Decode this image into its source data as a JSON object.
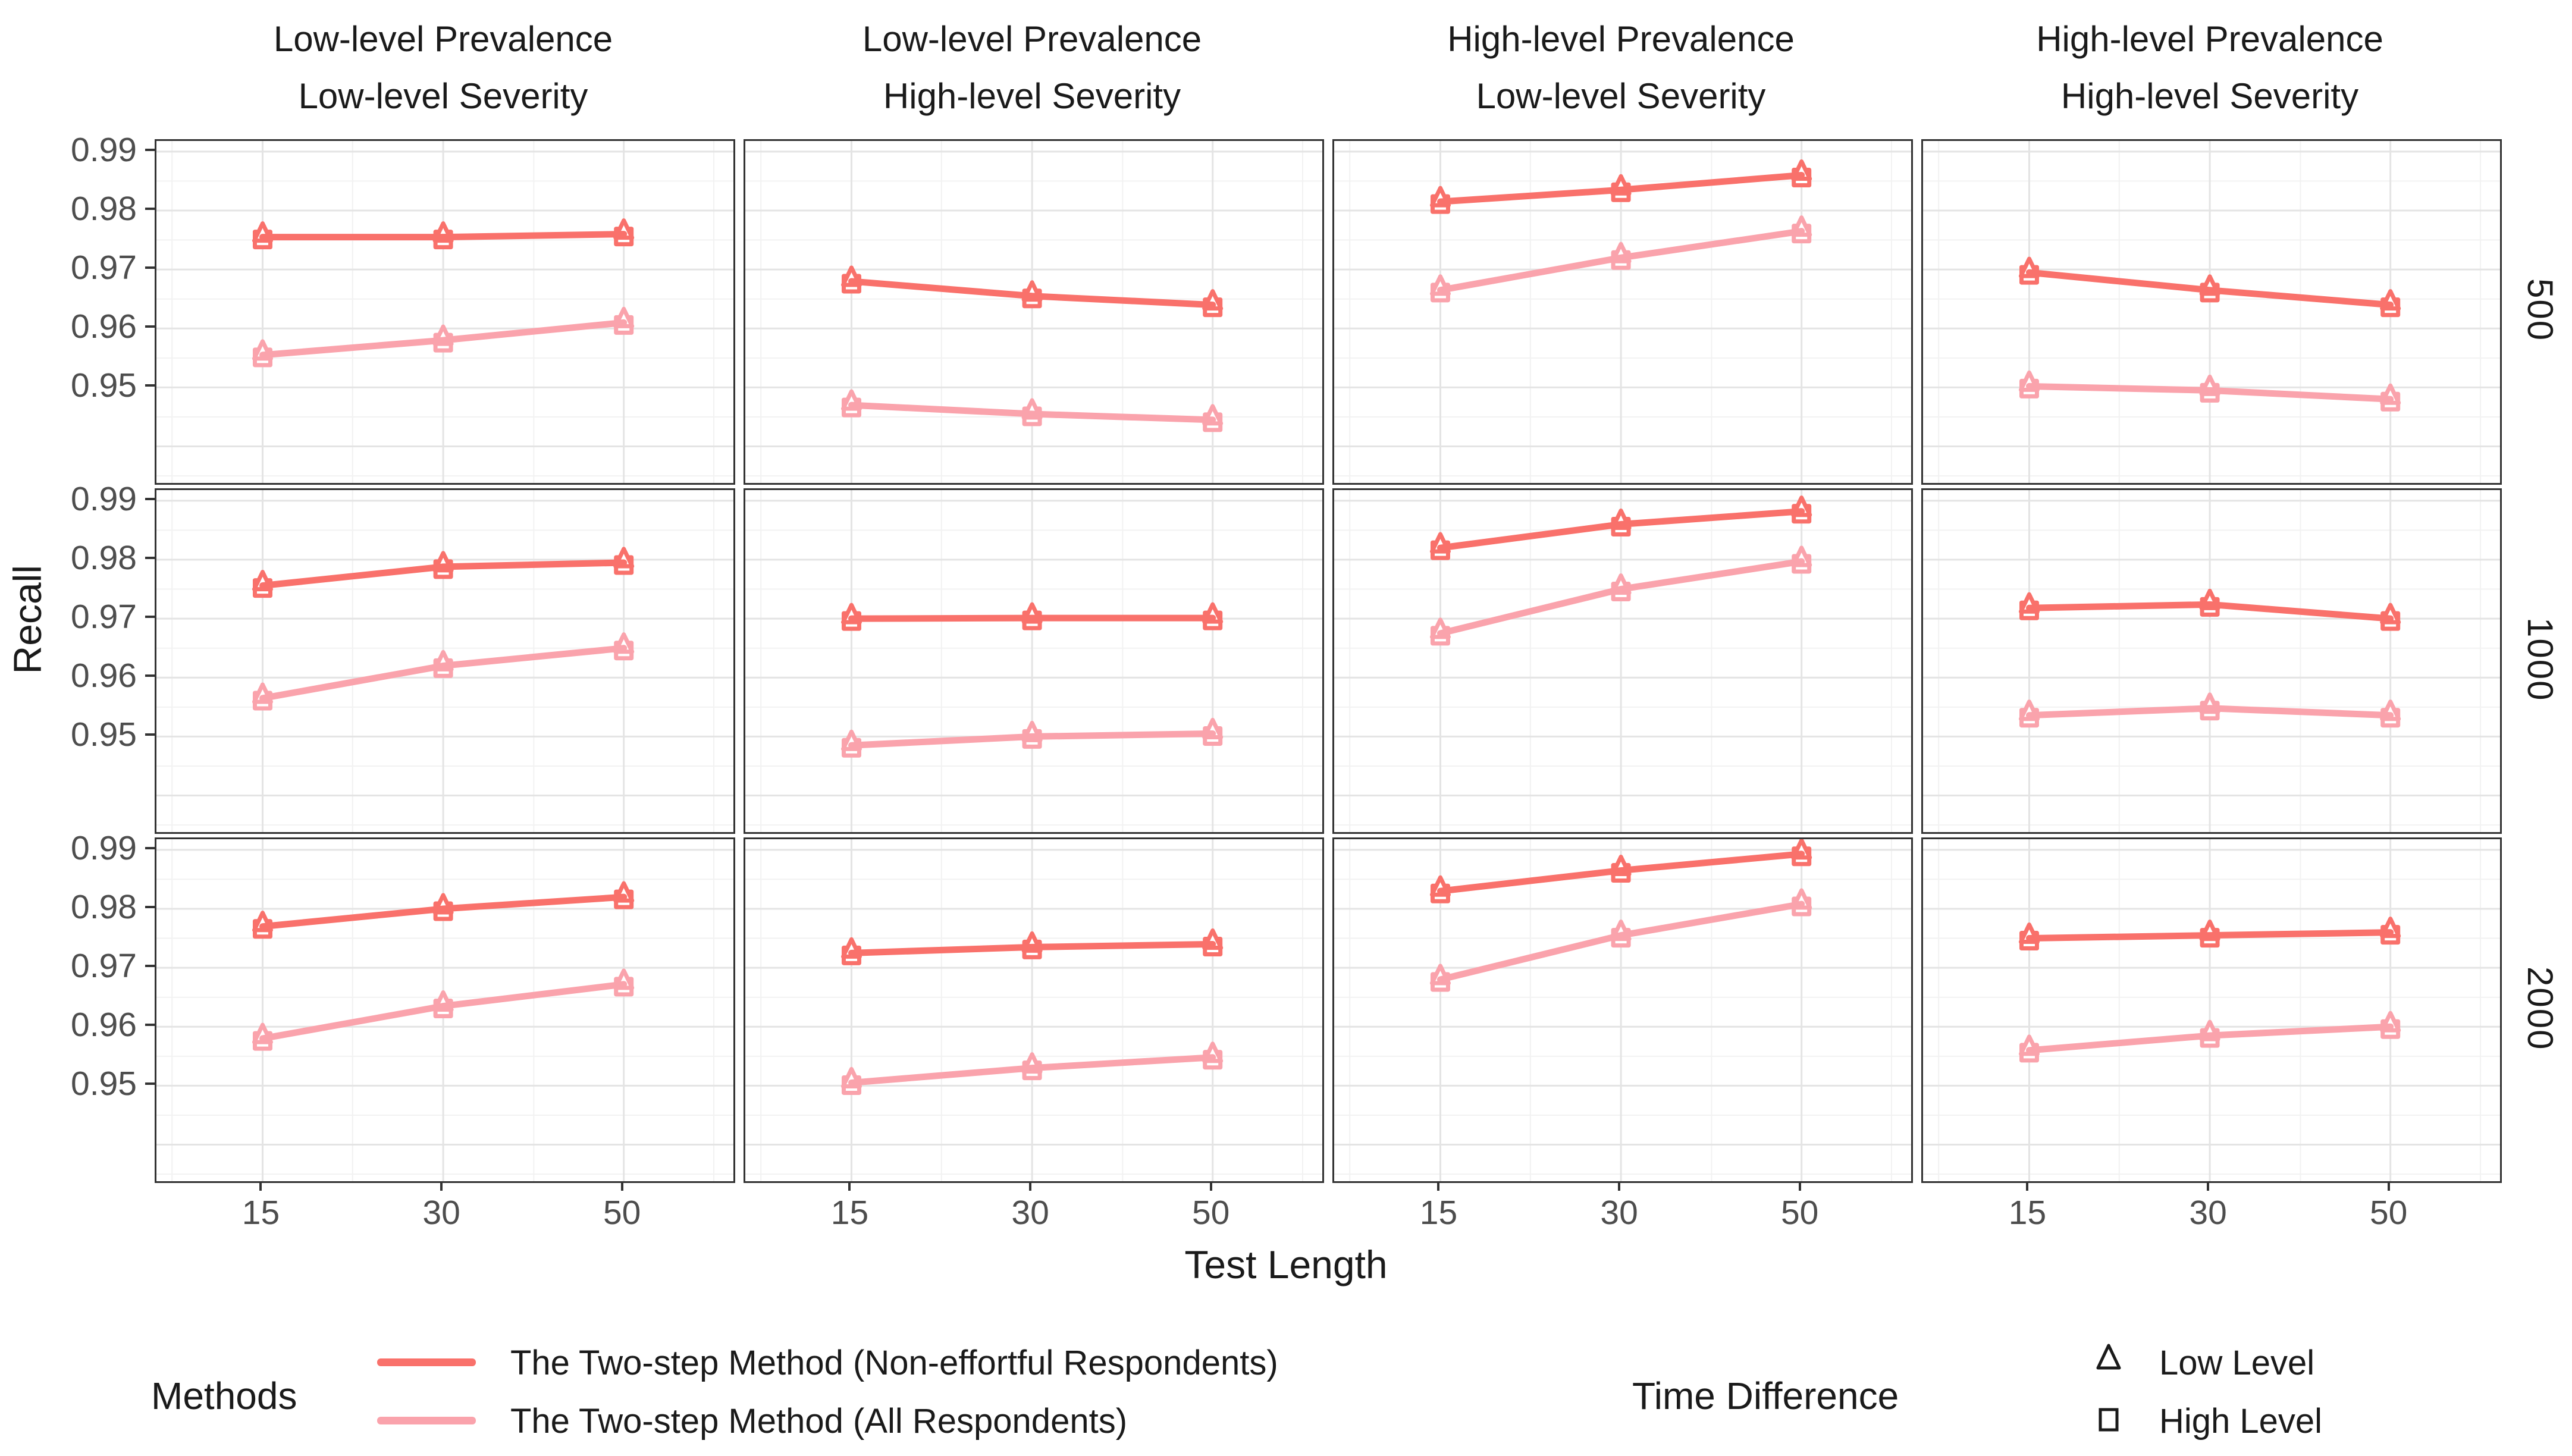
{
  "figure": {
    "y_axis": {
      "title": "Recall",
      "tick_labels": [
        "0.99",
        "0.98",
        "0.97",
        "0.96",
        "0.95"
      ],
      "tick_values": [
        0.99,
        0.98,
        0.97,
        0.96,
        0.95
      ]
    },
    "x_axis": {
      "title": "Test Length",
      "tick_labels": [
        "15",
        "30",
        "50"
      ],
      "tick_values": [
        15,
        30,
        50
      ]
    },
    "facet_columns": [
      {
        "line1": "Low-level Prevalence",
        "line2": "Low-level Severity"
      },
      {
        "line1": "Low-level Prevalence",
        "line2": "High-level Severity"
      },
      {
        "line1": "High-level Prevalence",
        "line2": "Low-level Severity"
      },
      {
        "line1": "High-level Prevalence",
        "line2": "High-level Severity"
      }
    ],
    "facet_rows": [
      "500",
      "1000",
      "2000"
    ],
    "legend": {
      "methods": {
        "title": "Methods",
        "entries": [
          {
            "label": "The Two-step Method (Non-effortful Respondents)",
            "color": "#F9716B"
          },
          {
            "label": "The Two-step Method (All Respondents)",
            "color": "#FAA3AC"
          }
        ]
      },
      "time_difference": {
        "title": "Time Difference",
        "entries": [
          {
            "label": "Low Level",
            "marker": "triangle"
          },
          {
            "label": "High Level",
            "marker": "square"
          }
        ]
      }
    },
    "colors": {
      "red": "#F9716B",
      "pink": "#FAA3AC",
      "grid_major": "#E4E4E4",
      "grid_minor": "#F2F2F2",
      "panel_border": "#333333",
      "tick_text": "#4d4d4d"
    }
  },
  "chart_data": {
    "type": "line",
    "xlabel": "Test Length",
    "ylabel": "Recall",
    "x": [
      15,
      30,
      50
    ],
    "ylim_ticks": [
      0.95,
      0.99
    ],
    "grid": true,
    "legend_position": "bottom",
    "note": "Each point carries overlapping open triangle (Low Level time difference) and open square (High Level time difference) markers; both levels have nearly identical values.",
    "facets": [
      {
        "row": "500",
        "col": "Low-level Prevalence / Low-level Severity",
        "series": [
          {
            "name": "The Two-step Method (Non-effortful Respondents)",
            "values": [
              0.9755,
              0.9755,
              0.976
            ]
          },
          {
            "name": "The Two-step Method (All Respondents)",
            "values": [
              0.9555,
              0.958,
              0.961
            ]
          }
        ]
      },
      {
        "row": "500",
        "col": "Low-level Prevalence / High-level Severity",
        "series": [
          {
            "name": "The Two-step Method (Non-effortful Respondents)",
            "values": [
              0.968,
              0.9655,
              0.964
            ]
          },
          {
            "name": "The Two-step Method (All Respondents)",
            "values": [
              0.947,
              0.9455,
              0.9445
            ]
          }
        ]
      },
      {
        "row": "500",
        "col": "High-level Prevalence / Low-level Severity",
        "series": [
          {
            "name": "The Two-step Method (Non-effortful Respondents)",
            "values": [
              0.9815,
              0.9835,
              0.986
            ]
          },
          {
            "name": "The Two-step Method (All Respondents)",
            "values": [
              0.9665,
              0.972,
              0.9765
            ]
          }
        ]
      },
      {
        "row": "500",
        "col": "High-level Prevalence / High-level Severity",
        "series": [
          {
            "name": "The Two-step Method (Non-effortful Respondents)",
            "values": [
              0.9695,
              0.9665,
              0.964
            ]
          },
          {
            "name": "The Two-step Method (All Respondents)",
            "values": [
              0.9502,
              0.9495,
              0.948
            ]
          }
        ]
      },
      {
        "row": "1000",
        "col": "Low-level Prevalence / Low-level Severity",
        "series": [
          {
            "name": "The Two-step Method (Non-effortful Respondents)",
            "values": [
              0.9756,
              0.9788,
              0.9795
            ]
          },
          {
            "name": "The Two-step Method (All Respondents)",
            "values": [
              0.9565,
              0.962,
              0.965
            ]
          }
        ]
      },
      {
        "row": "1000",
        "col": "Low-level Prevalence / High-level Severity",
        "series": [
          {
            "name": "The Two-step Method (Non-effortful Respondents)",
            "values": [
              0.97,
              0.9701,
              0.9701
            ]
          },
          {
            "name": "The Two-step Method (All Respondents)",
            "values": [
              0.9485,
              0.95,
              0.9505
            ]
          }
        ]
      },
      {
        "row": "1000",
        "col": "High-level Prevalence / Low-level Severity",
        "series": [
          {
            "name": "The Two-step Method (Non-effortful Respondents)",
            "values": [
              0.982,
              0.986,
              0.9882
            ]
          },
          {
            "name": "The Two-step Method (All Respondents)",
            "values": [
              0.9675,
              0.975,
              0.9797
            ]
          }
        ]
      },
      {
        "row": "1000",
        "col": "High-level Prevalence / High-level Severity",
        "series": [
          {
            "name": "The Two-step Method (Non-effortful Respondents)",
            "values": [
              0.9718,
              0.9724,
              0.97
            ]
          },
          {
            "name": "The Two-step Method (All Respondents)",
            "values": [
              0.9536,
              0.9548,
              0.9536
            ]
          }
        ]
      },
      {
        "row": "2000",
        "col": "Low-level Prevalence / Low-level Severity",
        "series": [
          {
            "name": "The Two-step Method (Non-effortful Respondents)",
            "values": [
              0.977,
              0.98,
              0.982
            ]
          },
          {
            "name": "The Two-step Method (All Respondents)",
            "values": [
              0.958,
              0.9635,
              0.9672
            ]
          }
        ]
      },
      {
        "row": "2000",
        "col": "Low-level Prevalence / High-level Severity",
        "series": [
          {
            "name": "The Two-step Method (Non-effortful Respondents)",
            "values": [
              0.9725,
              0.9735,
              0.974
            ]
          },
          {
            "name": "The Two-step Method (All Respondents)",
            "values": [
              0.9505,
              0.953,
              0.9548
            ]
          }
        ]
      },
      {
        "row": "2000",
        "col": "High-level Prevalence / Low-level Severity",
        "series": [
          {
            "name": "The Two-step Method (Non-effortful Respondents)",
            "values": [
              0.983,
              0.9865,
              0.9893
            ]
          },
          {
            "name": "The Two-step Method (All Respondents)",
            "values": [
              0.968,
              0.9755,
              0.9808
            ]
          }
        ]
      },
      {
        "row": "2000",
        "col": "High-level Prevalence / High-level Severity",
        "series": [
          {
            "name": "The Two-step Method (Non-effortful Respondents)",
            "values": [
              0.975,
              0.9755,
              0.976
            ]
          },
          {
            "name": "The Two-step Method (All Respondents)",
            "values": [
              0.956,
              0.9585,
              0.96
            ]
          }
        ]
      }
    ]
  }
}
